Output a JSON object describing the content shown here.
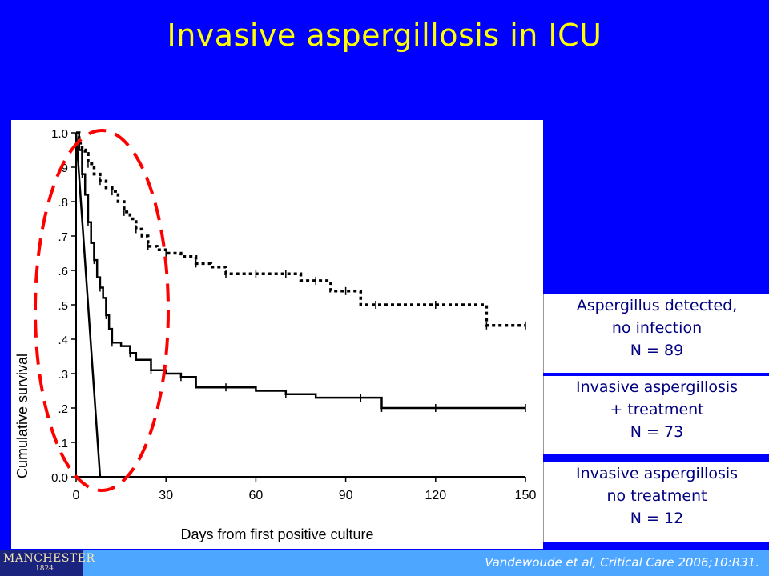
{
  "slide": {
    "title": "Invasive aspergillosis in ICU",
    "citation": "Vandewoude et al, Critical Care 2006;10:R31.",
    "logo_text": "MANCHESTER",
    "logo_year": "1824"
  },
  "legend": [
    {
      "line1": "Aspergillus detected,",
      "line2": "no infection",
      "line3": "N = 89"
    },
    {
      "line1": "Invasive aspergillosis",
      "line2": "+ treatment",
      "line3": "N = 73"
    },
    {
      "line1": "Invasive aspergillosis",
      "line2": "no treatment",
      "line3": "N = 12"
    }
  ],
  "colors": {
    "background": "#0000ff",
    "title": "#ffff00",
    "legend_text": "#000080",
    "highlight_ellipse": "#ff0000",
    "footer": "#4da6ff"
  },
  "chart_data": {
    "type": "line",
    "xlabel": "Days from first positive culture",
    "ylabel": "Cumulative survival",
    "xlim": [
      0,
      150
    ],
    "ylim": [
      0,
      1.0
    ],
    "x_ticks": [
      0,
      30,
      60,
      90,
      120,
      150
    ],
    "y_ticks": [
      0.0,
      0.1,
      0.2,
      0.3,
      0.4,
      0.5,
      0.6,
      0.7,
      0.8,
      0.9,
      1.0
    ],
    "y_tick_labels": [
      "0.0",
      ".1",
      ".2",
      ".3",
      ".4",
      ".5",
      ".6",
      ".7",
      ".8",
      ".9",
      "1.0"
    ],
    "grid": false,
    "series": [
      {
        "style": "dotted",
        "x": [
          0,
          1,
          2,
          3,
          4,
          6,
          8,
          10,
          12,
          14,
          16,
          18,
          20,
          22,
          24,
          27,
          30,
          35,
          40,
          45,
          50,
          55,
          60,
          65,
          70,
          75,
          80,
          85,
          90,
          95,
          100,
          110,
          120,
          130,
          137,
          140,
          150
        ],
        "y": [
          1.0,
          0.97,
          0.95,
          0.94,
          0.91,
          0.88,
          0.86,
          0.84,
          0.83,
          0.8,
          0.77,
          0.75,
          0.72,
          0.7,
          0.67,
          0.66,
          0.65,
          0.64,
          0.62,
          0.61,
          0.59,
          0.59,
          0.59,
          0.59,
          0.59,
          0.57,
          0.57,
          0.54,
          0.54,
          0.5,
          0.5,
          0.5,
          0.5,
          0.5,
          0.44,
          0.44,
          0.44
        ]
      },
      {
        "style": "solid",
        "x": [
          0,
          1,
          2,
          3,
          4,
          5,
          6,
          7,
          8,
          9,
          10,
          11,
          12,
          15,
          18,
          20,
          25,
          30,
          35,
          40,
          50,
          60,
          70,
          80,
          95,
          100,
          102,
          110,
          120,
          130,
          150
        ],
        "y": [
          1.0,
          0.95,
          0.88,
          0.82,
          0.74,
          0.68,
          0.63,
          0.58,
          0.55,
          0.52,
          0.47,
          0.43,
          0.39,
          0.38,
          0.36,
          0.34,
          0.31,
          0.3,
          0.29,
          0.26,
          0.26,
          0.25,
          0.24,
          0.23,
          0.23,
          0.23,
          0.2,
          0.2,
          0.2,
          0.2,
          0.2
        ]
      },
      {
        "style": "steep",
        "x": [
          0,
          8
        ],
        "y": [
          1.0,
          0.0
        ]
      }
    ]
  }
}
